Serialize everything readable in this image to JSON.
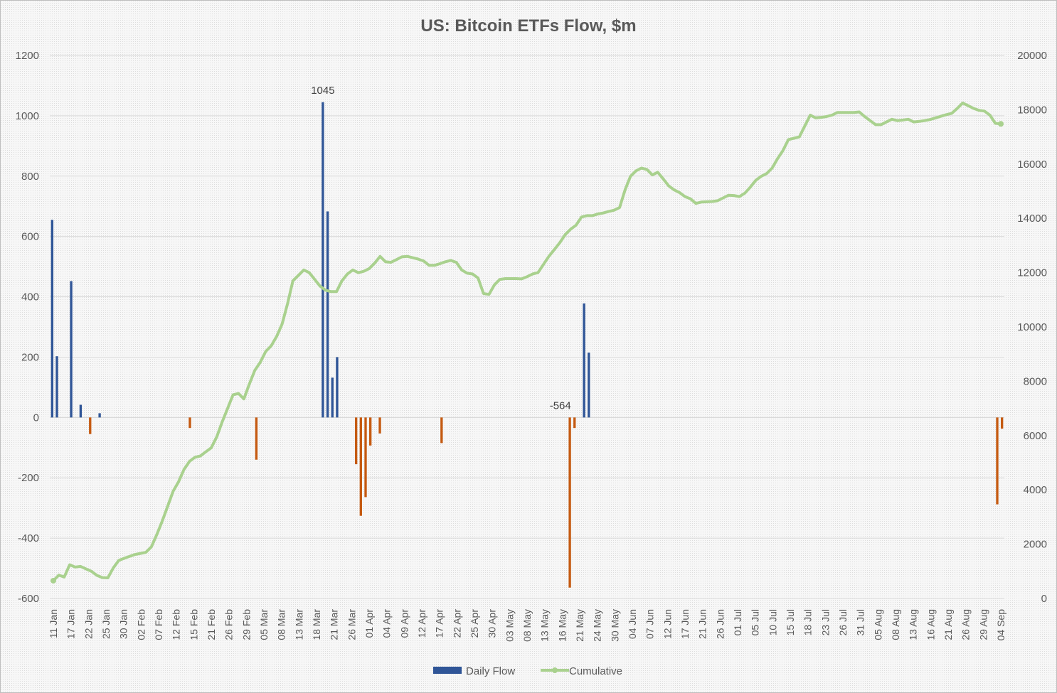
{
  "chart_data": {
    "type": "bar",
    "title": "US: Bitcoin ETFs Flow, $m",
    "y_left": {
      "ticks": [
        1200,
        1000,
        800,
        600,
        400,
        200,
        0,
        -200,
        -400,
        -600
      ],
      "range": [
        -600,
        1200
      ]
    },
    "y_right": {
      "ticks": [
        20000,
        18000,
        16000,
        14000,
        12000,
        10000,
        8000,
        6000,
        4000,
        2000,
        0
      ],
      "range": [
        0,
        20000
      ]
    },
    "x_tick_labels": [
      "11 Jan",
      "17 Jan",
      "22 Jan",
      "25 Jan",
      "30 Jan",
      "02 Feb",
      "07 Feb",
      "12 Feb",
      "15 Feb",
      "21 Feb",
      "26 Feb",
      "29 Feb",
      "05 Mar",
      "08 Mar",
      "13 Mar",
      "18 Mar",
      "21 Mar",
      "26 Mar",
      "01 Apr",
      "04 Apr",
      "09 Apr",
      "12 Apr",
      "17 Apr",
      "22 Apr",
      "25 Apr",
      "30 Apr",
      "03 May",
      "08 May",
      "13 May",
      "16 May",
      "21 May",
      "24 May",
      "30 May",
      "04 Jun",
      "07 Jun",
      "12 Jun",
      "17 Jun",
      "21 Jun",
      "26 Jun",
      "01 Jul",
      "05 Jul",
      "10 Jul",
      "15 Jul",
      "18 Jul",
      "23 Jul",
      "26 Jul",
      "31 Jul",
      "05 Aug",
      "08 Aug",
      "13 Aug",
      "16 Aug",
      "21 Aug",
      "26 Aug",
      "29 Aug",
      "04 Sep"
    ],
    "annotations": [
      {
        "text": "1045",
        "bar_index": 57
      },
      {
        "text": "-564",
        "bar_index": 107
      }
    ],
    "positive_color": "#2f5597",
    "negative_color": "#c55a11",
    "line_color": "#a9d18e",
    "series": [
      {
        "name": "Daily Flow",
        "axis": "left",
        "values": [
          655,
          203,
          0,
          0,
          452,
          0,
          42,
          0,
          -55,
          0,
          14,
          0,
          0,
          0,
          0,
          0,
          0,
          0,
          0,
          0,
          0,
          0,
          0,
          0,
          0,
          0,
          0,
          0,
          0,
          -35,
          0,
          0,
          0,
          0,
          0,
          0,
          0,
          0,
          0,
          0,
          0,
          0,
          0,
          -140,
          0,
          0,
          0,
          0,
          0,
          0,
          0,
          0,
          0,
          0,
          0,
          0,
          0,
          1045,
          683,
          132,
          200,
          0,
          0,
          0,
          -155,
          -326,
          -264,
          -93,
          0,
          -53,
          0,
          0,
          0,
          0,
          0,
          0,
          0,
          0,
          0,
          0,
          0,
          0,
          -85,
          0,
          0,
          0,
          0,
          0,
          0,
          0,
          0,
          0,
          0,
          0,
          0,
          0,
          0,
          0,
          0,
          0,
          0,
          0,
          0,
          0,
          0,
          0,
          0,
          0,
          0,
          -564,
          -35,
          0,
          378,
          215,
          0,
          0,
          0,
          0,
          0,
          0,
          0,
          0,
          0,
          0,
          0,
          0,
          0,
          0,
          0,
          0,
          0,
          0,
          0,
          0,
          0,
          0,
          0,
          0,
          0,
          0,
          0,
          0,
          0,
          0,
          0,
          0,
          0,
          0,
          0,
          0,
          0,
          0,
          0,
          0,
          0,
          0,
          0,
          0,
          0,
          0,
          0,
          0,
          0,
          0,
          0,
          0,
          0,
          0,
          0,
          0,
          0,
          0,
          0,
          0,
          0,
          0,
          0,
          0,
          0,
          0,
          0,
          0,
          0,
          0,
          0,
          0,
          0,
          0,
          0,
          0,
          0,
          0,
          0,
          0,
          0,
          0,
          0,
          0,
          0,
          -288,
          -37
        ]
      },
      {
        "name": "Cumulative",
        "axis": "right",
        "values": [
          655,
          858,
          790,
          1242,
          1157,
          1180,
          1090,
          1000,
          850,
          770,
          760,
          1120,
          1400,
          1480,
          1550,
          1620,
          1660,
          1700,
          1900,
          2350,
          2850,
          3400,
          3950,
          4300,
          4750,
          5050,
          5200,
          5250,
          5400,
          5550,
          5950,
          6500,
          7000,
          7500,
          7550,
          7350,
          7900,
          8400,
          8700,
          9100,
          9300,
          9650,
          10100,
          10850,
          11700,
          11900,
          12100,
          12000,
          11750,
          11500,
          11350,
          11300,
          11300,
          11700,
          11950,
          12100,
          12000,
          12050,
          12150,
          12350,
          12600,
          12400,
          12380,
          12480,
          12580,
          12600,
          12550,
          12500,
          12430,
          12270,
          12270,
          12330,
          12400,
          12450,
          12380,
          12100,
          11980,
          11950,
          11800,
          11230,
          11200,
          11550,
          11750,
          11780,
          11780,
          11780,
          11770,
          11850,
          11950,
          12000,
          12300,
          12600,
          12850,
          13100,
          13400,
          13600,
          13750,
          14050,
          14100,
          14100,
          14160,
          14200,
          14250,
          14300,
          14400,
          15050,
          15550,
          15750,
          15850,
          15800,
          15600,
          15700,
          15450,
          15200,
          15050,
          14950,
          14800,
          14720,
          14550,
          14600,
          14610,
          14620,
          14650,
          14750,
          14850,
          14840,
          14800,
          14930,
          15150,
          15400,
          15550,
          15650,
          15850,
          16200,
          16500,
          16900,
          16950,
          17000,
          17400,
          17800,
          17700,
          17720,
          17750,
          17800,
          17900,
          17900,
          17900,
          17900,
          17920,
          17750,
          17600,
          17450,
          17450,
          17550,
          17650,
          17600,
          17620,
          17650,
          17550,
          17570,
          17600,
          17640,
          17700,
          17760,
          17820,
          17870,
          18050,
          18250,
          18150,
          18050,
          17980,
          17950,
          17800,
          17500,
          17480
        ]
      }
    ]
  },
  "legend": {
    "bar_label": "Daily Flow",
    "line_label": "Cumulative"
  }
}
